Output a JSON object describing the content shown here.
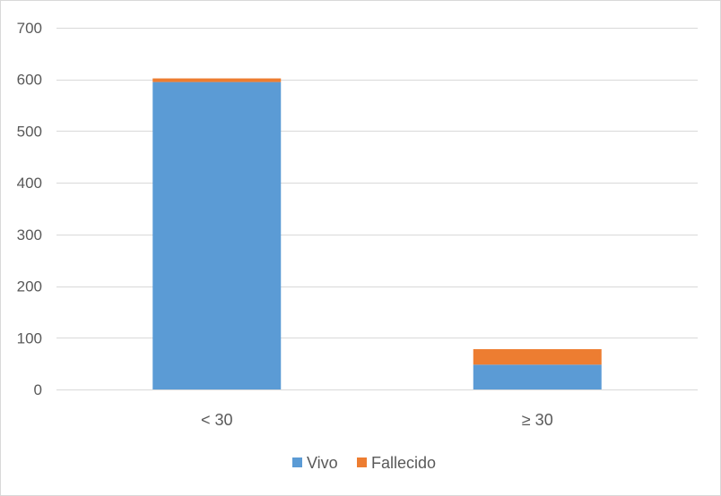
{
  "chart_data": {
    "type": "bar",
    "stacked": true,
    "categories": [
      "< 30",
      "≥ 30"
    ],
    "series": [
      {
        "name": "Vivo",
        "values": [
          595,
          48
        ],
        "color": "#5b9bd5"
      },
      {
        "name": "Fallecido",
        "values": [
          7,
          30
        ],
        "color": "#ed7d31"
      }
    ],
    "ylim": [
      0,
      700
    ],
    "yticks": [
      0,
      100,
      200,
      300,
      400,
      500,
      600,
      700
    ],
    "grid": true,
    "legend_position": "bottom",
    "title": "",
    "xlabel": "",
    "ylabel": ""
  }
}
